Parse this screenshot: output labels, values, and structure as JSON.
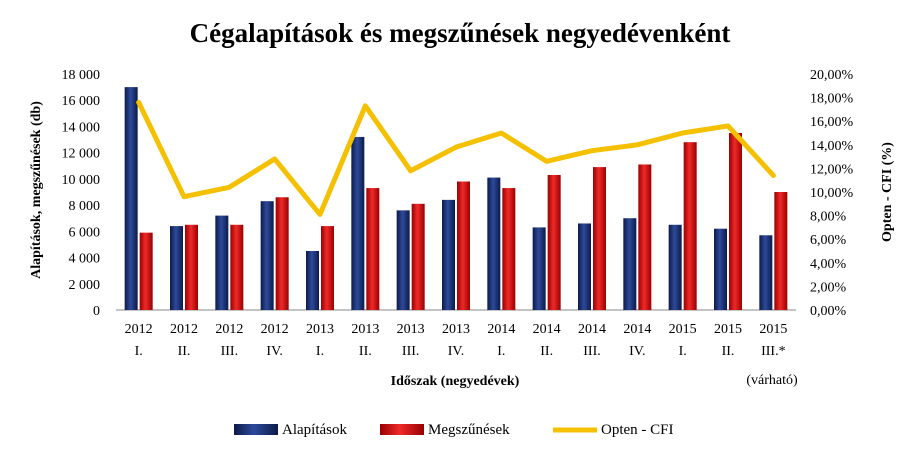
{
  "chart_data": {
    "type": "bar",
    "title": "Cégalapítások és megszűnések negyedévenként",
    "xlabel": "Időszak (negyedévek)",
    "ylabel": "Alapítások, megszűnések (db)",
    "y2label": "Opten - CFI (%)",
    "ylim": [
      0,
      18000
    ],
    "y2lim": [
      0,
      20
    ],
    "yticks": [
      "0",
      "2 000",
      "4 000",
      "6 000",
      "8 000",
      "10 000",
      "12 000",
      "14 000",
      "16 000",
      "18 000"
    ],
    "y2ticks": [
      "0,00%",
      "2,00%",
      "4,00%",
      "6,00%",
      "8,00%",
      "10,00%",
      "12,00%",
      "14,00%",
      "16,00%",
      "18,00%",
      "20,00%"
    ],
    "categories": [
      {
        "year": "2012",
        "quarter": "I."
      },
      {
        "year": "2012",
        "quarter": "II."
      },
      {
        "year": "2012",
        "quarter": "III."
      },
      {
        "year": "2012",
        "quarter": "IV."
      },
      {
        "year": "2013",
        "quarter": "I."
      },
      {
        "year": "2013",
        "quarter": "II."
      },
      {
        "year": "2013",
        "quarter": "III."
      },
      {
        "year": "2013",
        "quarter": "IV."
      },
      {
        "year": "2014",
        "quarter": "I."
      },
      {
        "year": "2014",
        "quarter": "II."
      },
      {
        "year": "2014",
        "quarter": "III."
      },
      {
        "year": "2014",
        "quarter": "IV."
      },
      {
        "year": "2015",
        "quarter": "I."
      },
      {
        "year": "2015",
        "quarter": "II."
      },
      {
        "year": "2015",
        "quarter": "III.*"
      }
    ],
    "footnote": "(várható)",
    "series": [
      {
        "name": "Alapítások",
        "type": "bar",
        "axis": "left",
        "color": "#1a2f6e",
        "values": [
          17000,
          6400,
          7200,
          8300,
          4500,
          13200,
          7600,
          8400,
          10100,
          6300,
          6600,
          7000,
          6500,
          6200,
          5700
        ]
      },
      {
        "name": "Megszűnések",
        "type": "bar",
        "axis": "left",
        "color": "#cc1111",
        "values": [
          5900,
          6500,
          6500,
          8600,
          6400,
          9300,
          8100,
          9800,
          9300,
          10300,
          10900,
          11100,
          12800,
          13500,
          9000
        ]
      },
      {
        "name": "Opten - CFI",
        "type": "line",
        "axis": "right",
        "color": "#f5c000",
        "values": [
          17.6,
          9.6,
          10.4,
          12.8,
          8.1,
          17.3,
          11.8,
          13.8,
          15.0,
          12.6,
          13.5,
          14.0,
          15.0,
          15.6,
          11.4
        ]
      }
    ],
    "grid": false,
    "legend_position": "bottom"
  }
}
